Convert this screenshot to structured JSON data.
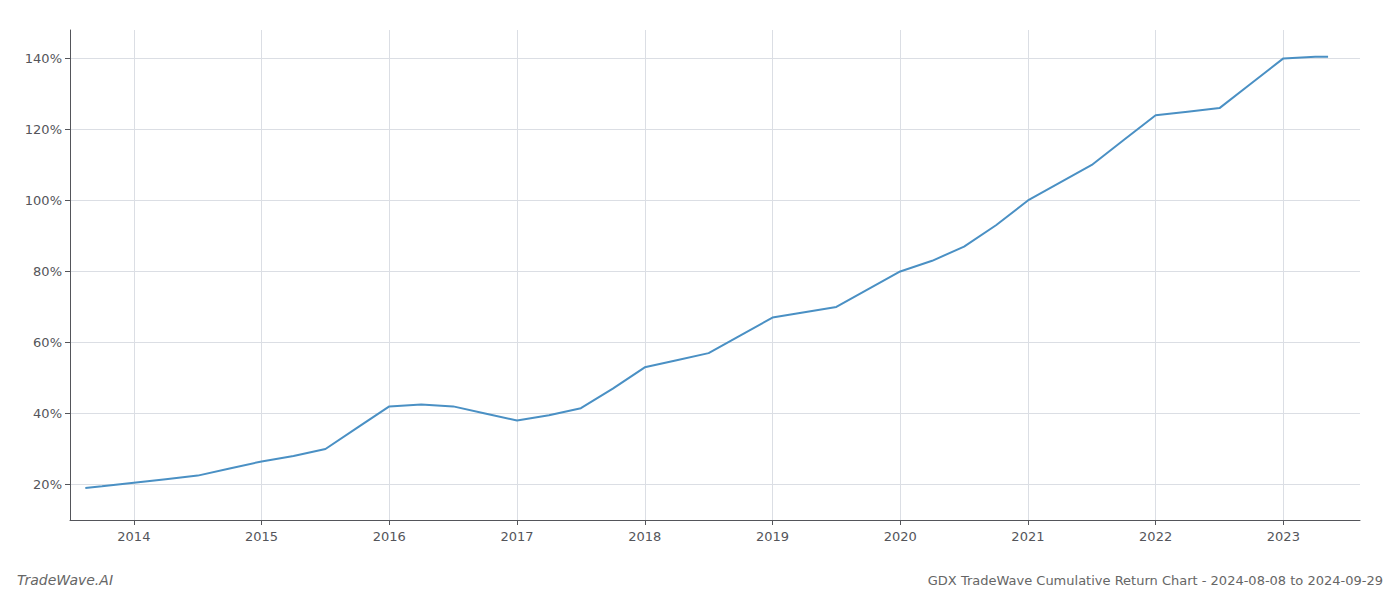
{
  "chart_data": {
    "type": "line",
    "title": "GDX TradeWave Cumulative Return Chart - 2024-08-08 to 2024-09-29",
    "annotations": [
      "TradeWave.AI"
    ],
    "color": "#4a90c4",
    "grid": true,
    "x": [
      2013.62,
      2013.75,
      2014.0,
      2014.25,
      2014.5,
      2014.75,
      2015.0,
      2015.25,
      2015.5,
      2015.75,
      2016.0,
      2016.25,
      2016.5,
      2016.75,
      2017.0,
      2017.25,
      2017.5,
      2017.75,
      2018.0,
      2018.25,
      2018.5,
      2018.75,
      2019.0,
      2019.25,
      2019.5,
      2019.75,
      2020.0,
      2020.25,
      2020.5,
      2020.75,
      2021.0,
      2021.25,
      2021.5,
      2021.75,
      2022.0,
      2022.25,
      2022.5,
      2022.75,
      2023.0,
      2023.25,
      2023.35
    ],
    "values": [
      19.0,
      19.5,
      20.5,
      21.5,
      22.5,
      24.5,
      26.5,
      28.0,
      30.0,
      36.0,
      42.0,
      42.5,
      42.0,
      40.0,
      38.0,
      39.5,
      41.5,
      47.0,
      53.0,
      55.0,
      57.0,
      62.0,
      67.0,
      68.5,
      70.0,
      75.0,
      80.0,
      83.0,
      87.0,
      93.0,
      100.0,
      105.0,
      110.0,
      117.0,
      124.0,
      125.0,
      126.0,
      133.0,
      140.0,
      140.5,
      140.5
    ],
    "xlim": [
      2013.5,
      2023.6
    ],
    "xticks": [
      2014,
      2015,
      2016,
      2017,
      2018,
      2019,
      2020,
      2021,
      2022,
      2023
    ],
    "ylim": [
      10,
      148
    ],
    "yticks": [
      {
        "value": 20,
        "label": "20%"
      },
      {
        "value": 40,
        "label": "40%"
      },
      {
        "value": 60,
        "label": "60%"
      },
      {
        "value": 80,
        "label": "80%"
      },
      {
        "value": 100,
        "label": "100%"
      },
      {
        "value": 120,
        "label": "120%"
      },
      {
        "value": 140,
        "label": "140%"
      }
    ]
  }
}
